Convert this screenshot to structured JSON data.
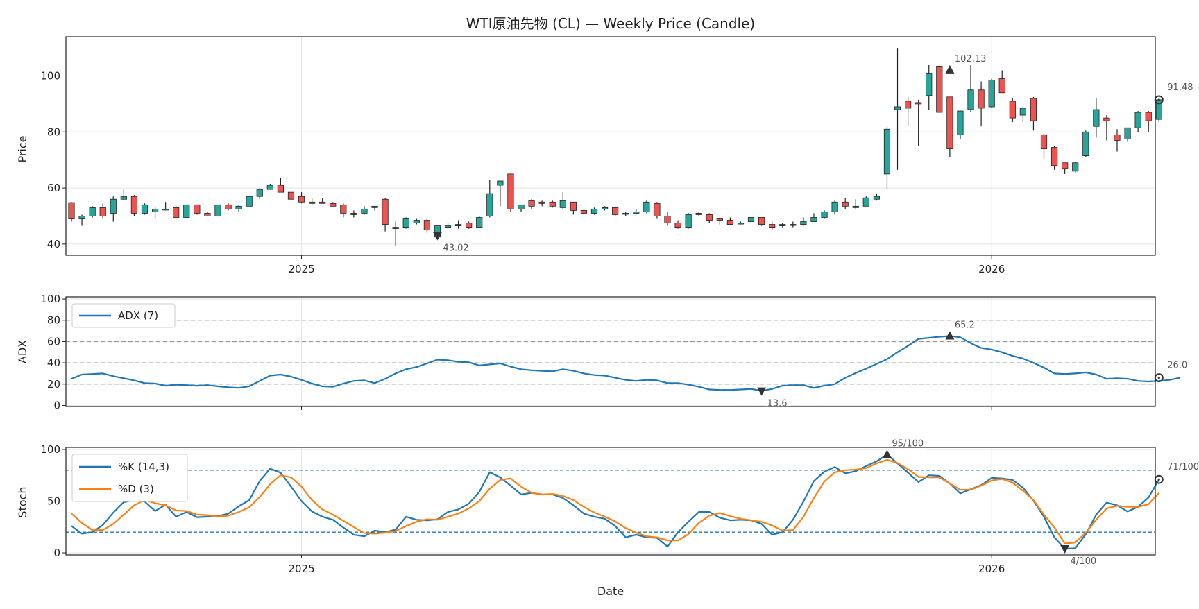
{
  "chart_data": [
    {
      "type": "candlestick",
      "title": "WTI原油先物 (CL) — Weekly Price (Candle)",
      "ylabel": "Price",
      "ylim": [
        36,
        114
      ],
      "yticks": [
        40,
        60,
        80,
        100
      ],
      "xticks": [
        {
          "label": "2025",
          "index": 22
        },
        {
          "label": "2026",
          "index": 88
        }
      ],
      "up_color": "#26a69a",
      "down_color": "#ef5350",
      "candles": [
        [
          54.8,
          55,
          48,
          49
        ],
        [
          49,
          50.5,
          46.5,
          50
        ],
        [
          50,
          53.5,
          49.5,
          53
        ],
        [
          53,
          54.5,
          49,
          50
        ],
        [
          51,
          57,
          48,
          56
        ],
        [
          56,
          59.5,
          55.5,
          57
        ],
        [
          57,
          57.5,
          50,
          51
        ],
        [
          51,
          54.5,
          50.5,
          54
        ],
        [
          51.5,
          53.5,
          49,
          52.5
        ],
        [
          52.5,
          55,
          52,
          52.5
        ],
        [
          53,
          53.5,
          49.5,
          49.5
        ],
        [
          49.5,
          54,
          49.5,
          54
        ],
        [
          54,
          54,
          50.5,
          51
        ],
        [
          51,
          51.5,
          50,
          50
        ],
        [
          50,
          54,
          50,
          54
        ],
        [
          54,
          54.5,
          52,
          52.5
        ],
        [
          52.5,
          54,
          51.5,
          53.5
        ],
        [
          53.5,
          57,
          53.5,
          57
        ],
        [
          57,
          60,
          56,
          59.5
        ],
        [
          59.5,
          61.5,
          59.5,
          61
        ],
        [
          61,
          63.5,
          58.5,
          58.5
        ],
        [
          58.5,
          58.5,
          55.5,
          56
        ],
        [
          57,
          58.5,
          54.5,
          55
        ],
        [
          55,
          56.5,
          54,
          54.5
        ],
        [
          55,
          56.5,
          54.5,
          54.5
        ],
        [
          54.5,
          55,
          53.5,
          53.5
        ],
        [
          54,
          54.5,
          49.5,
          51
        ],
        [
          51,
          52,
          49.5,
          50.5
        ],
        [
          51,
          53.5,
          50.5,
          52.5
        ],
        [
          53,
          53.5,
          52,
          53.5
        ],
        [
          56,
          56.5,
          44.5,
          47
        ],
        [
          45.5,
          48,
          39.5,
          46
        ],
        [
          46,
          49.5,
          45.5,
          49
        ],
        [
          47.5,
          49,
          47,
          48.5
        ],
        [
          48.5,
          49,
          44,
          45
        ],
        [
          42.5,
          46,
          42.5,
          46.5
        ],
        [
          46,
          47.5,
          45.5,
          46.5
        ],
        [
          46.5,
          48.5,
          45.5,
          47
        ],
        [
          47.5,
          48,
          45.5,
          46
        ],
        [
          46,
          50,
          46,
          49.5
        ],
        [
          50,
          63,
          49.5,
          58
        ],
        [
          61,
          62.5,
          53.5,
          62.5
        ],
        [
          65,
          65,
          51.5,
          52.5
        ],
        [
          52.5,
          54,
          51.5,
          54
        ],
        [
          55.5,
          56,
          52.5,
          53.5
        ],
        [
          55,
          55.5,
          53.5,
          54.5
        ],
        [
          55,
          55.5,
          53,
          53.5
        ],
        [
          53,
          58.5,
          52.5,
          55.5
        ],
        [
          55,
          55,
          50.5,
          52
        ],
        [
          52,
          52.5,
          50.5,
          51
        ],
        [
          51,
          53,
          50.5,
          52.5
        ],
        [
          52.5,
          53.5,
          52,
          53
        ],
        [
          53,
          53.5,
          50,
          50.5
        ],
        [
          51,
          51.5,
          50,
          51
        ],
        [
          51,
          52.5,
          50.5,
          51.5
        ],
        [
          51.5,
          55.5,
          51,
          55
        ],
        [
          54.5,
          55,
          49,
          50
        ],
        [
          50,
          51.5,
          46.5,
          47.5
        ],
        [
          47.5,
          48.5,
          45.5,
          46
        ],
        [
          46,
          51,
          45.5,
          50.5
        ],
        [
          51,
          51.5,
          50,
          50.5
        ],
        [
          50.5,
          51,
          47.5,
          48.5
        ],
        [
          49,
          49.5,
          47,
          48.5
        ],
        [
          48.5,
          49.5,
          47,
          47
        ],
        [
          47.5,
          48,
          47,
          47.5
        ],
        [
          48,
          49.5,
          48,
          49.5
        ],
        [
          49.5,
          49.5,
          46.5,
          47
        ],
        [
          47,
          48,
          45,
          46
        ],
        [
          46.5,
          47.5,
          46,
          47
        ],
        [
          47,
          48,
          46,
          47
        ],
        [
          47,
          49.5,
          46.5,
          48
        ],
        [
          48,
          51,
          48,
          49.5
        ],
        [
          49.5,
          52,
          49,
          51.5
        ],
        [
          51.5,
          55.5,
          50.5,
          55
        ],
        [
          55,
          56.5,
          52.5,
          53.5
        ],
        [
          53,
          56,
          52.5,
          53.5
        ],
        [
          53.5,
          57,
          53.5,
          56.5
        ],
        [
          56,
          58,
          55.5,
          57
        ],
        [
          65,
          82,
          59.5,
          81
        ],
        [
          88,
          110,
          66.5,
          89
        ],
        [
          91,
          92.5,
          82,
          88.5
        ],
        [
          90.5,
          91.5,
          75,
          90
        ],
        [
          93,
          104,
          88,
          101
        ],
        [
          103.5,
          103.5,
          87,
          87
        ],
        [
          92.5,
          92.5,
          71,
          74
        ],
        [
          79,
          87.5,
          77.5,
          87.5
        ],
        [
          88,
          104,
          87,
          95
        ],
        [
          95,
          98,
          82,
          88.5
        ],
        [
          89,
          99,
          88.5,
          98.5
        ],
        [
          99,
          102,
          94,
          94
        ],
        [
          91,
          92,
          83.5,
          85
        ],
        [
          86,
          89,
          83.5,
          88.5
        ],
        [
          92,
          92.5,
          80.5,
          84
        ],
        [
          79,
          79.5,
          70.5,
          74
        ],
        [
          74.5,
          75,
          66.5,
          68
        ],
        [
          69,
          69,
          65,
          67
        ],
        [
          66,
          69.5,
          65.5,
          69
        ],
        [
          71.5,
          80.5,
          71,
          80
        ],
        [
          82,
          92,
          78,
          88
        ],
        [
          85,
          86,
          77,
          84
        ],
        [
          79,
          81,
          73,
          77
        ],
        [
          77.5,
          81.5,
          76.5,
          81.5
        ],
        [
          81.5,
          87.5,
          80,
          87
        ],
        [
          87,
          87.5,
          80,
          84
        ],
        [
          84.5,
          91.5,
          83.5,
          91.5
        ]
      ],
      "annotations": [
        {
          "label": "102.13",
          "index": 84,
          "value": 102.13,
          "marker": "up-triangle"
        },
        {
          "label": "43.02",
          "index": 35,
          "value": 43.02,
          "marker": "down-triangle"
        },
        {
          "label": "91.48",
          "index": 104,
          "value": 91.48,
          "marker": "circle"
        }
      ]
    },
    {
      "type": "line",
      "ylabel": "ADX",
      "ylim": [
        -1,
        102
      ],
      "yticks": [
        0,
        20,
        40,
        60,
        80,
        100
      ],
      "reference_lines": [
        20,
        40,
        60,
        80
      ],
      "series": [
        {
          "name": "ADX (7)",
          "color": "#1f77b4",
          "values": [
            25,
            29,
            29.5,
            30,
            27.5,
            25.5,
            23.5,
            21,
            20.5,
            18.5,
            19.5,
            19,
            18.5,
            19,
            18,
            17,
            16.5,
            18,
            23,
            28,
            29,
            27,
            24,
            20.5,
            18,
            17.5,
            20.5,
            23,
            23.5,
            21,
            25,
            30,
            34,
            36,
            39.5,
            43,
            42.5,
            41,
            40.5,
            37.5,
            38.5,
            39.5,
            36.5,
            34,
            33,
            32.5,
            32,
            34,
            32.5,
            30,
            28.5,
            28,
            26,
            24,
            23,
            24,
            23.5,
            21,
            21,
            19.5,
            17.5,
            15,
            14.5,
            14.5,
            15,
            15.5,
            13.6,
            15.5,
            18.5,
            19,
            19,
            16.5,
            18.5,
            20,
            26,
            30.5,
            34.5,
            39,
            43.5,
            50,
            56,
            62.5,
            63.5,
            64.5,
            65.2,
            64,
            58.5,
            54,
            52.5,
            50,
            46.5,
            44,
            40,
            35.5,
            30,
            29.5,
            30,
            31,
            29,
            25,
            25.5,
            25,
            23,
            22.5,
            23,
            24,
            26
          ]
        }
      ],
      "annotations": [
        {
          "label": "65.2",
          "index": 84,
          "value": 65.2,
          "marker": "up-triangle"
        },
        {
          "label": "13.6",
          "index": 66,
          "value": 13.6,
          "marker": "down-triangle"
        },
        {
          "label": "26.0",
          "index": 104,
          "value": 26.0,
          "marker": "circle"
        }
      ]
    },
    {
      "type": "line",
      "xlabel": "Date",
      "ylabel": "Stoch",
      "ylim": [
        -2,
        102
      ],
      "yticks": [
        0,
        50,
        100
      ],
      "reference_lines": [
        20,
        80
      ],
      "series": [
        {
          "name": "%K (14,3)",
          "color": "#1f77b4",
          "values": [
            26,
            18.5,
            20,
            27,
            39,
            49,
            51,
            49.5,
            40.5,
            46.5,
            35,
            39.5,
            34.5,
            35,
            35.5,
            38,
            45,
            51,
            69.5,
            81.5,
            77.5,
            64,
            50,
            40,
            35,
            32,
            24.5,
            17.5,
            16,
            21.5,
            20,
            22.5,
            35,
            32,
            31.5,
            32.5,
            39.5,
            42,
            47.5,
            59,
            78,
            73,
            65,
            56.5,
            58,
            56.5,
            56.5,
            53,
            46,
            38,
            35,
            33,
            26,
            15,
            17.5,
            15,
            14.5,
            6,
            20,
            30,
            39.5,
            39.5,
            34,
            31.5,
            32,
            31.5,
            28,
            17.5,
            20,
            32,
            49.5,
            69.5,
            78.5,
            83,
            77,
            79,
            84,
            88.5,
            95,
            86.5,
            77.5,
            68.5,
            75,
            74.5,
            67,
            57.5,
            61.5,
            65.5,
            72.5,
            72,
            70.5,
            63,
            50.5,
            35,
            15,
            4,
            4.5,
            18,
            37,
            48.5,
            46,
            40,
            44.5,
            53.5,
            71
          ]
        },
        {
          "name": "%D (3)",
          "color": "#ff7f0e",
          "values": [
            38,
            29,
            22,
            22,
            28,
            37,
            46,
            51,
            48,
            46,
            41,
            40.5,
            37,
            36.5,
            35,
            36,
            39.5,
            44,
            54,
            66.5,
            75,
            73,
            64,
            51,
            42,
            37,
            31,
            25,
            19,
            18.5,
            19.5,
            21,
            26,
            30,
            32.5,
            32,
            35,
            38,
            43,
            50,
            62,
            70.5,
            72,
            64,
            58,
            56.5,
            57,
            55,
            51,
            44.5,
            39,
            35,
            30.5,
            24,
            19.5,
            16,
            15,
            12,
            12,
            18,
            29,
            36,
            38.5,
            35.5,
            33,
            31.5,
            30,
            26.5,
            21.5,
            22,
            35,
            53,
            69,
            78,
            80,
            80.5,
            82,
            86.5,
            90,
            87,
            81,
            73.5,
            73,
            73,
            67,
            61,
            61,
            65,
            70,
            71.5,
            68,
            60,
            51,
            37,
            24.5,
            9,
            10,
            19.5,
            32,
            43,
            45.5,
            44.5,
            44.5,
            47,
            58
          ]
        }
      ],
      "annotations": [
        {
          "label": "95/100",
          "index": 78,
          "value": 95,
          "marker": "up-triangle"
        },
        {
          "label": "4/100",
          "index": 95,
          "value": 4,
          "marker": "down-triangle"
        },
        {
          "label": "71/100",
          "index": 104,
          "value": 71,
          "marker": "circle"
        }
      ]
    }
  ]
}
